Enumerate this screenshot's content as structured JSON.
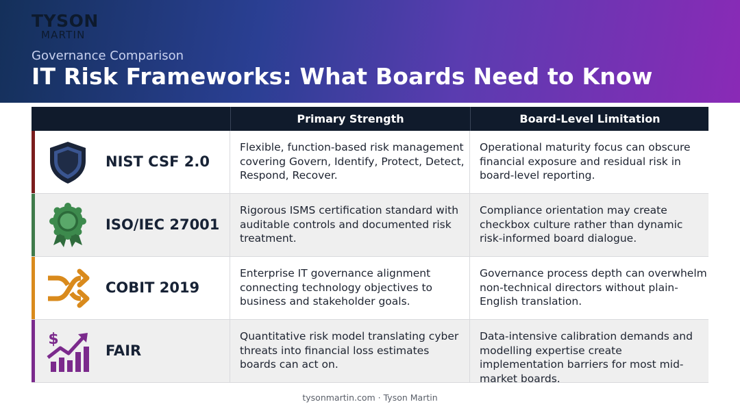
{
  "logo": {
    "line1": "TYSON",
    "line2": "MARTIN"
  },
  "header": {
    "kicker": "Governance Comparison",
    "title": "IT Risk Frameworks: What Boards Need to Know"
  },
  "table": {
    "columns": [
      "",
      "Primary Strength",
      "Board-Level Limitation"
    ],
    "rows": [
      {
        "framework": "NIST CSF 2.0",
        "icon": "shield-icon",
        "accent": "#7a1d1d",
        "strength": "Flexible, function-based risk management covering Govern, Identify, Protect, Detect, Respond, Recover.",
        "limitation": "Operational maturity focus can obscure financial exposure and residual risk in board-level reporting."
      },
      {
        "framework": "ISO/IEC 27001",
        "icon": "award-ribbon-icon",
        "accent": "#3f7a4a",
        "strength": "Rigorous ISMS certification standard with auditable controls and documented risk treatment.",
        "limitation": "Compliance orientation may create checkbox culture rather than dynamic risk-informed board dialogue."
      },
      {
        "framework": "COBIT 2019",
        "icon": "shuffle-arrows-icon",
        "accent": "#d98a1c",
        "strength": "Enterprise IT governance alignment connecting technology objectives to business and stakeholder goals.",
        "limitation": "Governance process depth can overwhelm non-technical directors without plain-English translation."
      },
      {
        "framework": "FAIR",
        "icon": "financial-growth-chart-icon",
        "accent": "#7b2a8c",
        "strength": "Quantitative risk model translating cyber threats into financial loss estimates boards can act on.",
        "limitation": "Data-intensive calibration demands and modelling expertise create implementation barriers for most mid-market boards."
      }
    ]
  },
  "footer": "tysonmartin.com · Tyson Martin"
}
